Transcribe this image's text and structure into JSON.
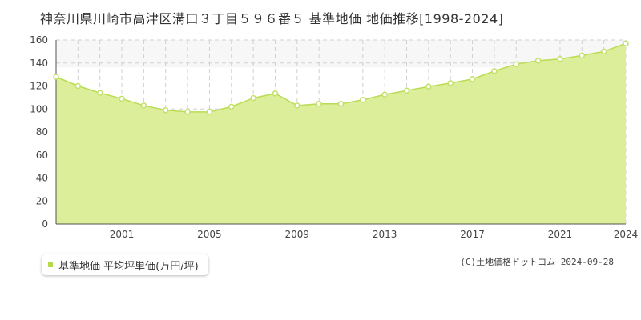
{
  "title": "神奈川県川崎市高津区溝口３丁目５９６番５ 基準地価 地価推移[1998-2024]",
  "legend_label": "基準地価 平均坪単価(万円/坪)",
  "credit": "(C)土地価格ドットコム 2024-09-28",
  "colors": {
    "area": "#dcee9a",
    "line": "#b9dc52",
    "point_fill": "#ffffff",
    "point_stroke": "#c4e06a",
    "upper_band": "#f7f7f7"
  },
  "chart_data": {
    "type": "area",
    "title": "",
    "xlabel": "",
    "ylabel": "",
    "ylim": [
      0,
      160
    ],
    "xlim": [
      1998,
      2024
    ],
    "grid": true,
    "y_ticks": [
      0,
      20,
      40,
      60,
      80,
      100,
      120,
      140,
      160
    ],
    "x_tick_labels": [
      "2001",
      "2005",
      "2009",
      "2013",
      "2017",
      "2021",
      "2024"
    ],
    "series": [
      {
        "name": "基準地価 平均坪単価(万円/坪)",
        "x": [
          1998,
          1999,
          2000,
          2001,
          2002,
          2003,
          2004,
          2005,
          2006,
          2007,
          2008,
          2009,
          2010,
          2011,
          2012,
          2013,
          2014,
          2015,
          2016,
          2017,
          2018,
          2019,
          2020,
          2021,
          2022,
          2023,
          2024
        ],
        "values": [
          128,
          120,
          114,
          109,
          103,
          99,
          97.5,
          97.5,
          102,
          109.5,
          113.5,
          103,
          104.5,
          104.5,
          108,
          112.5,
          116,
          119.5,
          122.5,
          126,
          133,
          139,
          142,
          143.5,
          146.5,
          150,
          157
        ]
      }
    ]
  }
}
